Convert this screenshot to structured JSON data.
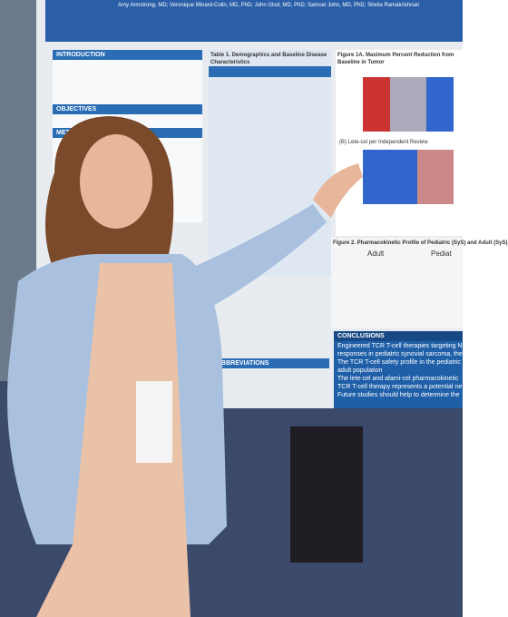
{
  "poster": {
    "authors": "Amy Armstrong, MD; Veronique Minard-Colin, MD, PhD; John Glod, MD, PhD; Samuel John, MD, PhD; Sheila Ramakrishnan",
    "sections": {
      "introduction": "INTRODUCTION",
      "objectives": "OBJECTIVES",
      "methods": "METH",
      "abbreviations": "ABBREVIATIONS",
      "conclusions": "CONCLUSIONS"
    },
    "table_title": "Table 1. Demographics and Baseline Disease Characteristics",
    "figure_title": "Figure 1A. Maximum Percent Reduction from Baseline in Tumor",
    "figure_b": "(B) Lete-cel per Independent Review",
    "figure_c": "Figure 2. Pharmacokinetic Profile of Pediatric (SyS) and Adult (SyS)",
    "plot_labels": [
      "Adult",
      "Pediat"
    ],
    "conclusions": [
      "Engineered TCR T-cell therapies targeting N",
      "responses in pediatric synovial sarcoma, the",
      "The TCR T-cell safety profile in the pediatric",
      "adult population",
      "The lete-cel and afami-cel pharmacokinetic",
      "TCR T-cell therapy represents a potential ne",
      "Future studies should help to determine the"
    ]
  }
}
